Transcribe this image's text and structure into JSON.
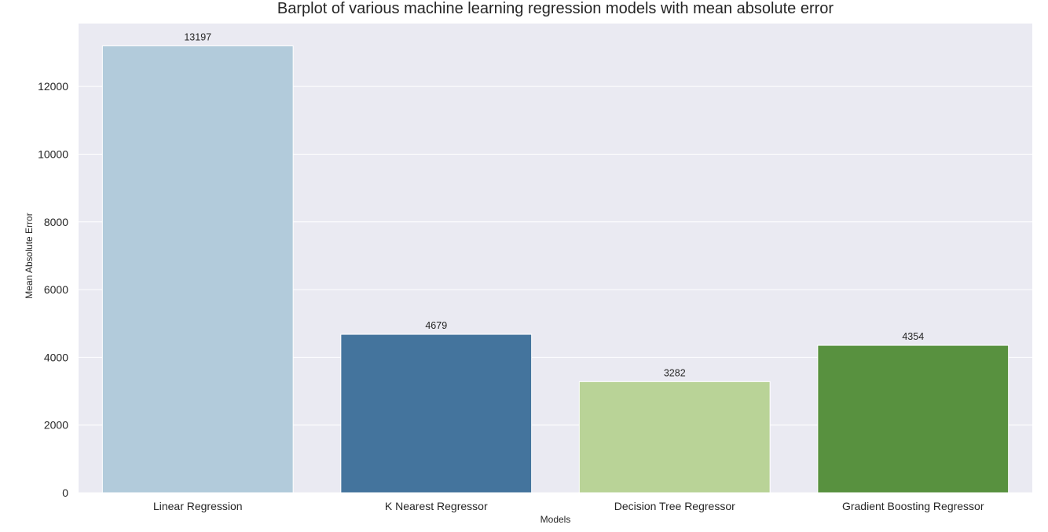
{
  "chart_data": {
    "type": "bar",
    "title": "Barplot of various machine learning regression models with mean absolute error",
    "xlabel": "Models",
    "ylabel": "Mean Absolute Error",
    "categories": [
      "Linear Regression",
      "K Nearest Regressor",
      "Decision Tree Regressor",
      "Gradient Boosting Regressor"
    ],
    "values": [
      13197,
      4679,
      3282,
      4354
    ],
    "data_labels": [
      "13197",
      "4679",
      "3282",
      "4354"
    ],
    "colors": [
      "#b2cbdb",
      "#44749d",
      "#b9d397",
      "#58913f"
    ],
    "ylim": [
      0,
      13857
    ],
    "yticks": [
      0,
      2000,
      4000,
      6000,
      8000,
      10000,
      12000
    ],
    "ytick_labels": [
      "0",
      "2000",
      "4000",
      "6000",
      "8000",
      "10000",
      "12000"
    ],
    "grid": true,
    "background": "#eaeaf2"
  }
}
